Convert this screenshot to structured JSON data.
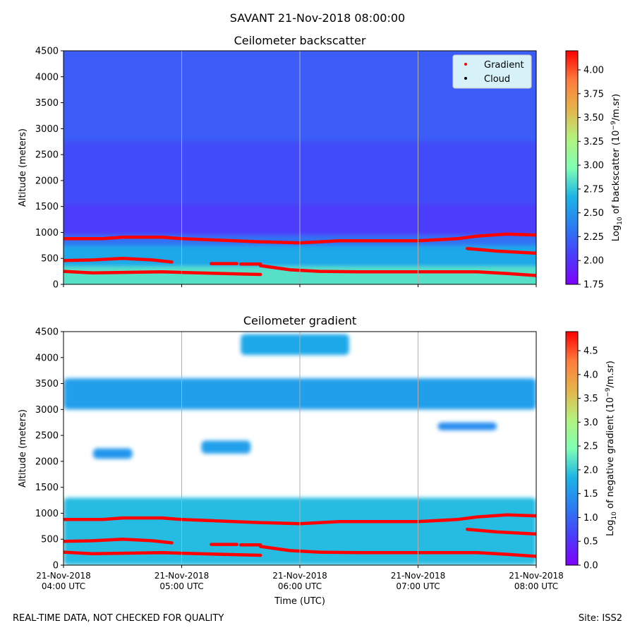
{
  "page": {
    "title": "SAVANT 21-Nov-2018 08:00:00",
    "footer_left": "REAL-TIME DATA, NOT CHECKED FOR QUALITY",
    "footer_right": "Site: ISS2"
  },
  "chart_data": [
    {
      "type": "heatmap",
      "title": "Ceilometer backscatter",
      "xlabel": "",
      "ylabel": "Altitude (meters)",
      "xlim": [
        "2018-11-21T04:00:00Z",
        "2018-11-21T08:00:00Z"
      ],
      "ylim": [
        0,
        4500
      ],
      "yticks": [
        0,
        500,
        1000,
        1500,
        2000,
        2500,
        3000,
        3500,
        4000,
        4500
      ],
      "x_gridlines": [
        "2018-11-21T05:00:00Z",
        "2018-11-21T06:00:00Z",
        "2018-11-21T07:00:00Z"
      ],
      "colorbar": {
        "label": "Log10 of backscatter (10^-9/m.sr)",
        "range": [
          1.75,
          4.2
        ],
        "ticks": [
          "1.75",
          "2.00",
          "2.25",
          "2.50",
          "2.75",
          "3.00",
          "3.25",
          "3.50",
          "3.75",
          "4.00"
        ]
      },
      "legend": {
        "placement": "top-right",
        "entries": [
          {
            "name": "Gradient",
            "color": "#ff0000"
          },
          {
            "name": "Cloud",
            "color": "#000000"
          }
        ]
      },
      "bands": [
        {
          "from": 0,
          "to": 400,
          "value": 2.85
        },
        {
          "from": 400,
          "to": 800,
          "value": 2.6
        },
        {
          "from": 800,
          "to": 1000,
          "value": 2.3
        },
        {
          "from": 1000,
          "to": 1600,
          "value": 2.05
        },
        {
          "from": 1600,
          "to": 2800,
          "value": 2.12
        },
        {
          "from": 2800,
          "to": 4500,
          "value": 2.2
        }
      ]
    },
    {
      "type": "heatmap",
      "title": "Ceilometer gradient",
      "xlabel": "Time (UTC)",
      "ylabel": "Altitude (meters)",
      "xlim": [
        "2018-11-21T04:00:00Z",
        "2018-11-21T08:00:00Z"
      ],
      "ylim": [
        0,
        4500
      ],
      "yticks": [
        0,
        500,
        1000,
        1500,
        2000,
        2500,
        3000,
        3500,
        4000,
        4500
      ],
      "xticks": [
        [
          "21-Nov-2018",
          "04:00 UTC"
        ],
        [
          "21-Nov-2018",
          "05:00 UTC"
        ],
        [
          "21-Nov-2018",
          "06:00 UTC"
        ],
        [
          "21-Nov-2018",
          "07:00 UTC"
        ],
        [
          "21-Nov-2018",
          "08:00 UTC"
        ]
      ],
      "x_gridlines": [
        "2018-11-21T05:00:00Z",
        "2018-11-21T06:00:00Z",
        "2018-11-21T07:00:00Z"
      ],
      "colorbar": {
        "label": "Log10 of negative gradient (10^-9/m.sr)",
        "range": [
          0,
          4.9
        ],
        "ticks": [
          "0.0",
          "0.5",
          "1.0",
          "1.5",
          "2.0",
          "2.5",
          "3.0",
          "3.5",
          "4.0",
          "4.5"
        ]
      },
      "patches": [
        {
          "t0": "04:00",
          "t1": "08:00",
          "alt0": 0,
          "alt1": 1300,
          "value": 1.9
        },
        {
          "t0": "04:00",
          "t1": "08:00",
          "alt0": 3000,
          "alt1": 3600,
          "value": 1.6
        },
        {
          "t0": "04:15",
          "t1": "04:35",
          "alt0": 2050,
          "alt1": 2250,
          "value": 1.5
        },
        {
          "t0": "05:10",
          "t1": "05:35",
          "alt0": 2150,
          "alt1": 2400,
          "value": 1.6
        },
        {
          "t0": "05:30",
          "t1": "06:25",
          "alt0": 4050,
          "alt1": 4450,
          "value": 1.7
        },
        {
          "t0": "07:10",
          "t1": "07:40",
          "alt0": 2600,
          "alt1": 2750,
          "value": 1.4
        }
      ]
    }
  ],
  "gradient_series": {
    "name": "Gradient",
    "color": "#ff0000",
    "lines": [
      {
        "time": [
          "04:00",
          "04:20",
          "04:30",
          "04:50",
          "05:00",
          "05:20",
          "05:40",
          "06:00",
          "06:20",
          "06:40",
          "07:00",
          "07:20",
          "07:30",
          "07:45",
          "08:00"
        ],
        "alt": [
          880,
          880,
          910,
          910,
          880,
          850,
          820,
          800,
          840,
          840,
          840,
          880,
          930,
          970,
          950
        ]
      },
      {
        "time": [
          "04:00",
          "04:15",
          "04:30",
          "04:45",
          "04:55"
        ],
        "alt": [
          460,
          470,
          500,
          470,
          430
        ]
      },
      {
        "time": [
          "05:15",
          "05:28"
        ],
        "alt": [
          400,
          400
        ]
      },
      {
        "time": [
          "05:30",
          "05:40"
        ],
        "alt": [
          390,
          390
        ]
      },
      {
        "time": [
          "05:40",
          "05:55",
          "06:10",
          "06:30",
          "06:50",
          "07:10",
          "07:30",
          "07:45",
          "08:00"
        ],
        "alt": [
          360,
          280,
          250,
          240,
          240,
          240,
          240,
          210,
          170
        ]
      },
      {
        "time": [
          "04:00",
          "04:15",
          "04:30",
          "04:50",
          "05:00",
          "05:20",
          "05:40"
        ],
        "alt": [
          250,
          220,
          230,
          240,
          230,
          210,
          190
        ]
      },
      {
        "time": [
          "07:25",
          "07:40",
          "08:00"
        ],
        "alt": [
          690,
          640,
          600
        ]
      }
    ]
  }
}
